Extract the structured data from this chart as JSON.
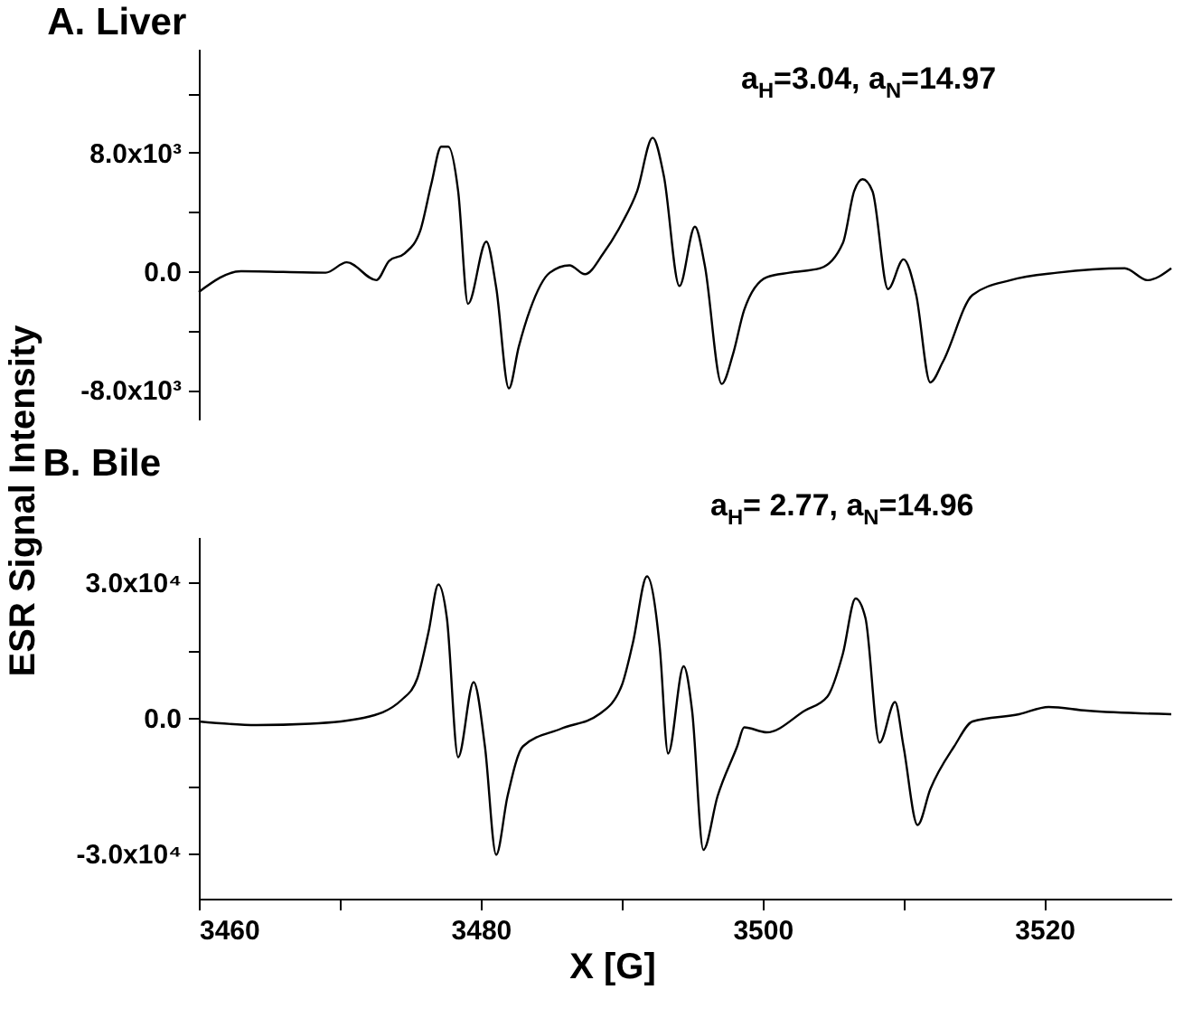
{
  "chart_data": [
    {
      "type": "line",
      "title": "A. Liver",
      "ylabel": "ESR Signal Intensity",
      "annotations": [
        "a$_{H}$=3.04, a$_{N}$=14.97"
      ],
      "x": [
        3460,
        3463.0,
        3469.0,
        3470.5,
        3472.6,
        3473.5,
        3474.6,
        3475.7,
        3476.5,
        3477.2,
        3477.7,
        3478.4,
        3479.1,
        3480.4,
        3481.1,
        3482.0,
        3482.7,
        3483.5,
        3484.9,
        3486.3,
        3487.4,
        3488.7,
        3490.0,
        3491.1,
        3492.2,
        3493.0,
        3494.1,
        3495.2,
        3495.9,
        3497.1,
        3497.9,
        3498.7,
        3500.3,
        3501.9,
        3504.1,
        3505.7,
        3506.5,
        3507.1,
        3507.8,
        3508.9,
        3510.0,
        3510.9,
        3511.9,
        3512.8,
        3514.9,
        3517.6,
        3520.9,
        3525.7,
        3527.3,
        3529.0
      ],
      "series": [
        {
          "color": "#000000",
          "line_style": "solid",
          "values": [
            -1400,
            0,
            -100,
            600,
            -600,
            700,
            1200,
            2700,
            5900,
            8400,
            8400,
            5400,
            -2200,
            2000,
            -1100,
            -7900,
            -5100,
            -2600,
            -100,
            400,
            -200,
            1200,
            3200,
            5400,
            9000,
            6400,
            -1000,
            3000,
            400,
            -7600,
            -5600,
            -2600,
            -400,
            -100,
            200,
            1900,
            5400,
            6200,
            5400,
            -1200,
            800,
            -1600,
            -7500,
            -6100,
            -1600,
            -600,
            -100,
            200,
            -600,
            200
          ]
        }
      ],
      "xlim": [
        3460,
        3529
      ],
      "ylim": [
        -10000,
        15000
      ],
      "yticks": [
        {
          "value": -8000,
          "label": "-8.0x10³"
        },
        {
          "value": -4000,
          "label": null
        },
        {
          "value": 0,
          "label": "0.0"
        },
        {
          "value": 4000,
          "label": null
        },
        {
          "value": 8000,
          "label": "8.0x10³"
        },
        {
          "value": 12000,
          "label": null
        }
      ],
      "tick_labels": "y",
      "grid": false,
      "legend": false
    },
    {
      "type": "line",
      "title": "B. Bile",
      "xlabel": "X [G]",
      "annotations": [
        "a$_{H}$= 2.77, a$_{N}$=14.96"
      ],
      "x": [
        3460,
        3464.1,
        3467.9,
        3471.7,
        3474.4,
        3475.5,
        3476.3,
        3477.0,
        3477.6,
        3478.4,
        3479.5,
        3480.3,
        3481.1,
        3481.9,
        3483.0,
        3485.7,
        3488.4,
        3490.0,
        3490.8,
        3491.8,
        3492.7,
        3493.3,
        3494.4,
        3495.0,
        3495.8,
        3496.8,
        3498.2,
        3498.7,
        3500.3,
        3503.0,
        3504.6,
        3505.7,
        3506.6,
        3507.3,
        3508.3,
        3509.4,
        3510.0,
        3511.0,
        3511.9,
        3513.6,
        3514.9,
        3518.2,
        3520.3,
        3523.0,
        3529.0
      ],
      "series": [
        {
          "color": "#000000",
          "line_style": "solid",
          "values": [
            -800,
            -1600,
            -1300,
            0,
            4000,
            8700,
            19000,
            29500,
            22100,
            -8700,
            7900,
            -6300,
            -30300,
            -17400,
            -6300,
            -2400,
            800,
            7100,
            16600,
            31300,
            15800,
            -7900,
            11400,
            1600,
            -29200,
            -17400,
            -6300,
            -2100,
            -3200,
            1600,
            4700,
            14200,
            26400,
            22100,
            -5500,
            3500,
            -6300,
            -23700,
            -15800,
            -6300,
            -800,
            800,
            2400,
            1600,
            800
          ]
        }
      ],
      "xlim": [
        3460,
        3529
      ],
      "ylim": [
        -40000,
        40000
      ],
      "xticks": [
        3460,
        {
          "value": 3470,
          "label": null
        },
        3480,
        {
          "value": 3490,
          "label": null
        },
        3500,
        {
          "value": 3510,
          "label": null
        },
        3520
      ],
      "yticks": [
        {
          "value": -30000,
          "label": "-3.0x10⁴"
        },
        {
          "value": -15000,
          "label": null
        },
        {
          "value": 0,
          "label": "0.0"
        },
        {
          "value": 15000,
          "label": null
        },
        {
          "value": 30000,
          "label": "3.0x10⁴"
        }
      ],
      "grid": false,
      "legend": false
    }
  ]
}
